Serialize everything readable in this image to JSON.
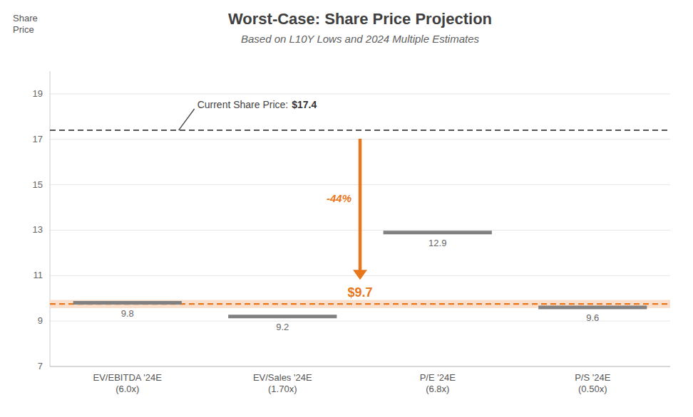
{
  "chart_data": {
    "type": "scatter",
    "marker": "dash",
    "title": "Worst-Case: Share Price Projection",
    "subtitle": "Based on L10Y Lows and 2024 Multiple Estimates",
    "y_label": "Share\nPrice",
    "categories": [
      "EV/EBITDA '24E\n(6.0x)",
      "EV/Sales '24E\n(1.70x)",
      "P/E '24E\n(6.8x)",
      "P/S '24E\n(0.50x)"
    ],
    "values": [
      9.8,
      9.2,
      12.9,
      9.6
    ],
    "color": "#808080",
    "data_labels": true,
    "ylim": [
      7,
      20
    ],
    "yticks": [
      7,
      9,
      11,
      13,
      15,
      17,
      19
    ],
    "grid": true,
    "reference_lines": [
      {
        "value": 17.4,
        "label": "Current Share Price:",
        "value_label": "$17.4",
        "color": "#555555",
        "line_style": "dashed"
      },
      {
        "value": 9.75,
        "value_label": "$9.7",
        "color": "#E8761A",
        "line_style": "dashed",
        "band": [
          9.57,
          9.93
        ],
        "band_color": "#FAE0CC"
      }
    ],
    "change": {
      "label": "-44%"
    }
  }
}
